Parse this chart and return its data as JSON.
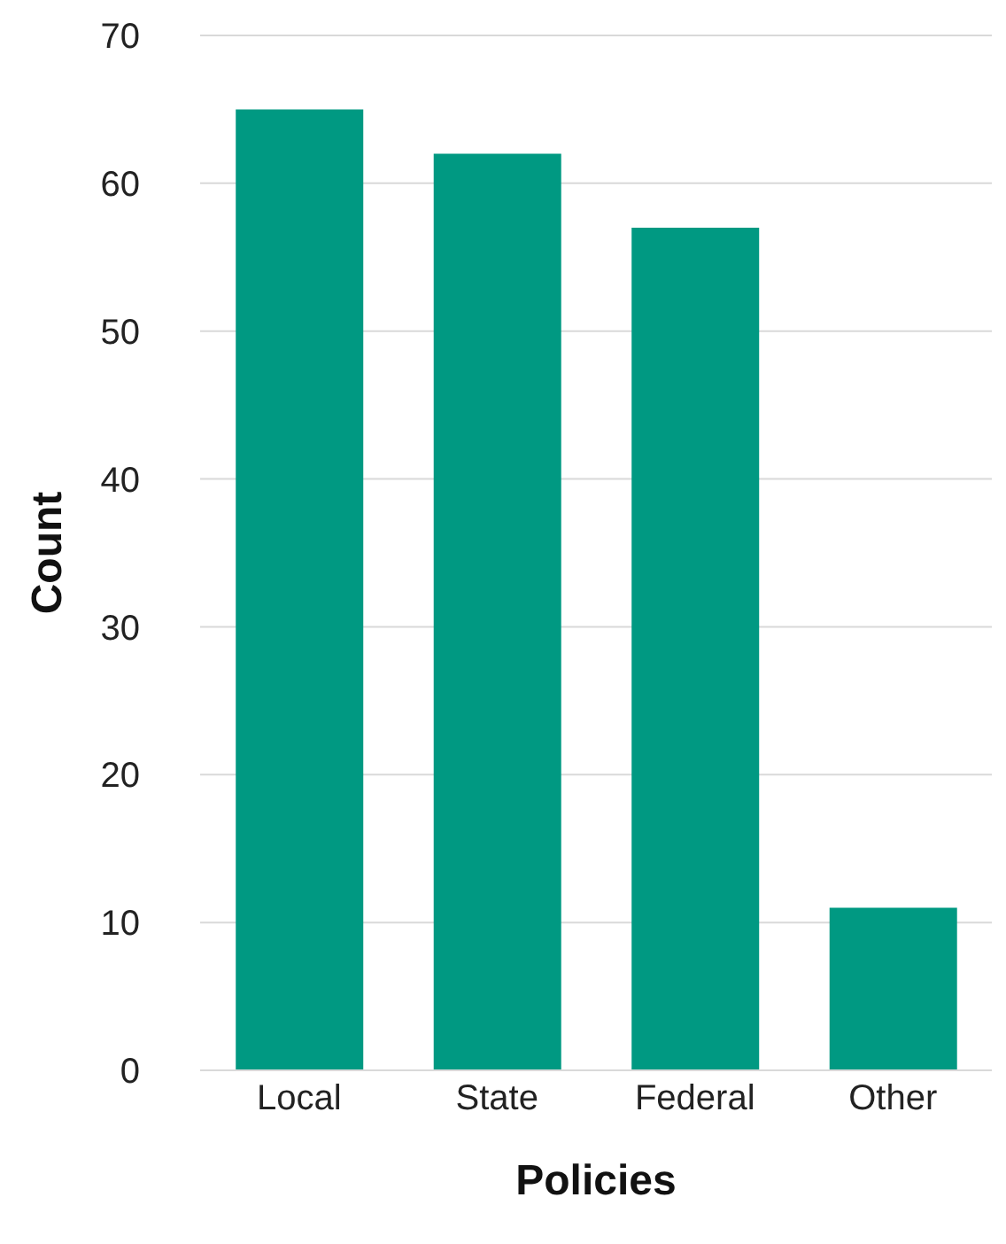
{
  "chart_data": {
    "type": "bar",
    "xlabel": "Policies",
    "ylabel": "Count",
    "categories": [
      "Local",
      "State",
      "Federal",
      "Other"
    ],
    "values": [
      65,
      62,
      57,
      11
    ],
    "color": "#009982",
    "ylim": [
      0,
      70
    ],
    "yticks": [
      0,
      10,
      20,
      30,
      40,
      50,
      60,
      70
    ],
    "grid": "y"
  }
}
